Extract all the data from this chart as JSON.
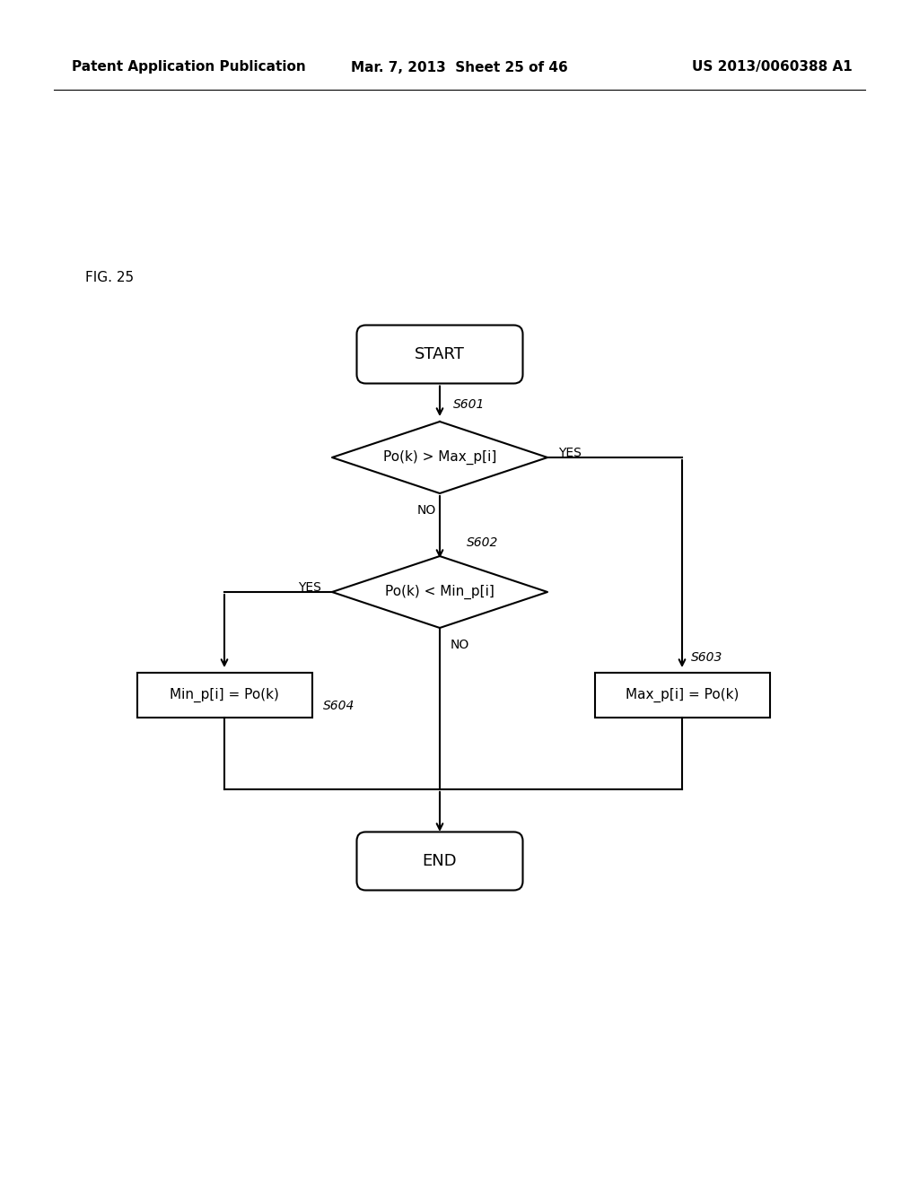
{
  "background_color": "#ffffff",
  "header_left": "Patent Application Publication",
  "header_center": "Mar. 7, 2013  Sheet 25 of 46",
  "header_right": "US 2013/0060388 A1",
  "fig_label": "FIG. 25",
  "start_label": "START",
  "end_label": "END",
  "diamond1_label": "Po(k) > Max_p[i]",
  "diamond2_label": "Po(k) < Min_p[i]",
  "box_left_label": "Min_p[i] = Po(k)",
  "box_right_label": "Max_p[i] = Po(k)",
  "s601": "S601",
  "s602": "S602",
  "s603": "S603",
  "s604": "S604",
  "yes1": "YES",
  "no1": "NO",
  "yes2": "YES",
  "no2": "NO",
  "line_color": "#000000",
  "text_color": "#000000",
  "font_size_header": 11,
  "font_size_body": 13,
  "font_size_label": 11,
  "font_size_step": 10
}
